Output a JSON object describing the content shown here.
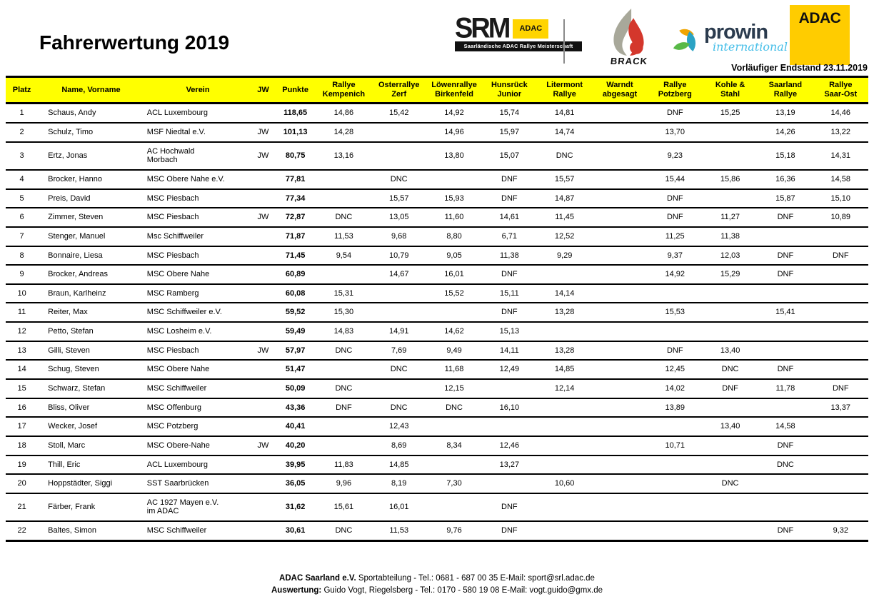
{
  "page": {
    "title": "Fahrerwertung 2019",
    "status_note": "Vorläufiger Endstand 23.11.2019"
  },
  "logos": {
    "srm": {
      "word": "SRM",
      "adac_badge": "ADAC",
      "subtitle": "Saarländische ADAC Rallye Meisterschaft"
    },
    "brack": {
      "word": "BRACK"
    },
    "prowin": {
      "word": "prowin",
      "subtitle": "international"
    },
    "adac": {
      "word": "ADAC"
    }
  },
  "colors": {
    "header_yellow": "#FFFF00",
    "adac_yellow": "#FFCC00",
    "prowin_navy": "#2B3B4E",
    "prowin_blue": "#45BEE8",
    "brack_red": "#D4372C",
    "brack_grey": "#A8A89A",
    "leaf_orange": "#F0A500",
    "leaf_teal": "#2BA3C4",
    "leaf_green": "#58B947"
  },
  "table": {
    "columns": [
      {
        "key": "platz",
        "label": "Platz"
      },
      {
        "key": "name",
        "label": "Name, Vorname"
      },
      {
        "key": "verein",
        "label": "Verein"
      },
      {
        "key": "jw",
        "label": "JW"
      },
      {
        "key": "punkte",
        "label": "Punkte"
      },
      {
        "key": "race0",
        "label": "Rallye\nKempenich"
      },
      {
        "key": "race1",
        "label": "Osterrallye\nZerf"
      },
      {
        "key": "race2",
        "label": "Löwenrallye\nBirkenfeld"
      },
      {
        "key": "race3",
        "label": "Hunsrück\nJunior"
      },
      {
        "key": "race4",
        "label": "Litermont\nRallye"
      },
      {
        "key": "race5",
        "label": "Warndt\nabgesagt"
      },
      {
        "key": "race6",
        "label": "Rallye\nPotzberg"
      },
      {
        "key": "race7",
        "label": "Kohle &\nStahl"
      },
      {
        "key": "race8",
        "label": "Saarland\nRallye"
      },
      {
        "key": "race9",
        "label": "Rallye\nSaar-Ost"
      }
    ],
    "rows": [
      {
        "platz": "1",
        "name": "Schaus,  Andy",
        "verein": "ACL Luxembourg",
        "jw": "",
        "punkte": "118,65",
        "results": [
          "14,86",
          "15,42",
          "14,92",
          "15,74",
          "14,81",
          "",
          "DNF",
          "15,25",
          "13,19",
          "14,46"
        ]
      },
      {
        "platz": "2",
        "name": "Schulz,  Timo",
        "verein": "MSF Niedtal e.V.",
        "jw": "JW",
        "punkte": "101,13",
        "results": [
          "14,28",
          "",
          "14,96",
          "15,97",
          "14,74",
          "",
          "13,70",
          "",
          "14,26",
          "13,22"
        ]
      },
      {
        "platz": "3",
        "name": "Ertz,  Jonas",
        "verein": "AC Hochwald\nMorbach",
        "jw": "JW",
        "punkte": "80,75",
        "results": [
          "13,16",
          "",
          "13,80",
          "15,07",
          "DNC",
          "",
          "9,23",
          "",
          "15,18",
          "14,31"
        ]
      },
      {
        "platz": "4",
        "name": "Brocker,  Hanno",
        "verein": "MSC Obere Nahe e.V.",
        "jw": "",
        "punkte": "77,81",
        "results": [
          "",
          "DNC",
          "",
          "DNF",
          "15,57",
          "",
          "15,44",
          "15,86",
          "16,36",
          "14,58"
        ]
      },
      {
        "platz": "5",
        "name": "Preis,  David",
        "verein": "MSC Piesbach",
        "jw": "",
        "punkte": "77,34",
        "results": [
          "",
          "15,57",
          "15,93",
          "DNF",
          "14,87",
          "",
          "DNF",
          "",
          "15,87",
          "15,10"
        ]
      },
      {
        "platz": "6",
        "name": "Zimmer,  Steven",
        "verein": "MSC Piesbach",
        "jw": "JW",
        "punkte": "72,87",
        "results": [
          "DNC",
          "13,05",
          "11,60",
          "14,61",
          "11,45",
          "",
          "DNF",
          "11,27",
          "DNF",
          "10,89"
        ]
      },
      {
        "platz": "7",
        "name": "Stenger,  Manuel",
        "verein": "Msc Schiffweiler",
        "jw": "",
        "punkte": "71,87",
        "results": [
          "11,53",
          "9,68",
          "8,80",
          "6,71",
          "12,52",
          "",
          "11,25",
          "11,38",
          "",
          ""
        ]
      },
      {
        "platz": "8",
        "name": "Bonnaire,  Liesa",
        "verein": "MSC Piesbach",
        "jw": "",
        "punkte": "71,45",
        "results": [
          "9,54",
          "10,79",
          "9,05",
          "11,38",
          "9,29",
          "",
          "9,37",
          "12,03",
          "DNF",
          "DNF"
        ]
      },
      {
        "platz": "9",
        "name": "Brocker,  Andreas",
        "verein": "MSC Obere Nahe",
        "jw": "",
        "punkte": "60,89",
        "results": [
          "",
          "14,67",
          "16,01",
          "DNF",
          "",
          "",
          "14,92",
          "15,29",
          "DNF",
          ""
        ]
      },
      {
        "platz": "10",
        "name": "Braun,  Karlheinz",
        "verein": "MSC Ramberg",
        "jw": "",
        "punkte": "60,08",
        "results": [
          "15,31",
          "",
          "15,52",
          "15,11",
          "14,14",
          "",
          "",
          "",
          "",
          ""
        ]
      },
      {
        "platz": "11",
        "name": "Reiter,  Max",
        "verein": "MSC Schiffweiler e.V.",
        "jw": "",
        "punkte": "59,52",
        "results": [
          "15,30",
          "",
          "",
          "DNF",
          "13,28",
          "",
          "15,53",
          "",
          "15,41",
          ""
        ]
      },
      {
        "platz": "12",
        "name": "Petto,  Stefan",
        "verein": "MSC Losheim e.V.",
        "jw": "",
        "punkte": "59,49",
        "results": [
          "14,83",
          "14,91",
          "14,62",
          "15,13",
          "",
          "",
          "",
          "",
          "",
          ""
        ]
      },
      {
        "platz": "13",
        "name": "Gilli,  Steven",
        "verein": "MSC Piesbach",
        "jw": "JW",
        "punkte": "57,97",
        "results": [
          "DNC",
          "7,69",
          "9,49",
          "14,11",
          "13,28",
          "",
          "DNF",
          "13,40",
          "",
          ""
        ]
      },
      {
        "platz": "14",
        "name": "Schug,  Steven",
        "verein": "MSC Obere Nahe",
        "jw": "",
        "punkte": "51,47",
        "results": [
          "",
          "DNC",
          "11,68",
          "12,49",
          "14,85",
          "",
          "12,45",
          "DNC",
          "DNF",
          ""
        ]
      },
      {
        "platz": "15",
        "name": "Schwarz,  Stefan",
        "verein": "MSC Schiffweiler",
        "jw": "",
        "punkte": "50,09",
        "results": [
          "DNC",
          "",
          "12,15",
          "",
          "12,14",
          "",
          "14,02",
          "DNF",
          "11,78",
          "DNF"
        ]
      },
      {
        "platz": "16",
        "name": "Bliss,  Oliver",
        "verein": "MSC Offenburg",
        "jw": "",
        "punkte": "43,36",
        "results": [
          "DNF",
          "DNC",
          "DNC",
          "16,10",
          "",
          "",
          "13,89",
          "",
          "",
          "13,37"
        ]
      },
      {
        "platz": "17",
        "name": "Wecker,  Josef",
        "verein": "MSC Potzberg",
        "jw": "",
        "punkte": "40,41",
        "results": [
          "",
          "12,43",
          "",
          "",
          "",
          "",
          "",
          "13,40",
          "14,58",
          ""
        ]
      },
      {
        "platz": "18",
        "name": "Stoll,  Marc",
        "verein": "MSC Obere-Nahe",
        "jw": "JW",
        "punkte": "40,20",
        "results": [
          "",
          "8,69",
          "8,34",
          "12,46",
          "",
          "",
          "10,71",
          "",
          "DNF",
          ""
        ]
      },
      {
        "platz": "19",
        "name": "Thill,  Eric",
        "verein": "ACL Luxembourg",
        "jw": "",
        "punkte": "39,95",
        "results": [
          "11,83",
          "14,85",
          "",
          "13,27",
          "",
          "",
          "",
          "",
          "DNC",
          ""
        ]
      },
      {
        "platz": "20",
        "name": "Hoppstädter,  Siggi",
        "verein": "SST Saarbrücken",
        "jw": "",
        "punkte": "36,05",
        "results": [
          "9,96",
          "8,19",
          "7,30",
          "",
          "10,60",
          "",
          "",
          "DNC",
          "",
          ""
        ]
      },
      {
        "platz": "21",
        "name": "Färber,  Frank",
        "verein": "AC 1927 Mayen e.V.\nim ADAC",
        "jw": "",
        "punkte": "31,62",
        "results": [
          "15,61",
          "16,01",
          "",
          "DNF",
          "",
          "",
          "",
          "",
          "",
          ""
        ]
      },
      {
        "platz": "22",
        "name": "Baltes,  Simon",
        "verein": "MSC Schiffweiler",
        "jw": "",
        "punkte": "30,61",
        "results": [
          "DNC",
          "11,53",
          "9,76",
          "DNF",
          "",
          "",
          "",
          "",
          "DNF",
          "9,32"
        ]
      }
    ]
  },
  "footer": {
    "line1_bold": "ADAC Saarland e.V.",
    "line1_rest": " Sportabteilung - Tel.: 0681 - 687 00 35   E-Mail: sport@srl.adac.de",
    "line2_bold": "Auswertung:",
    "line2_rest": " Guido Vogt, Riegelsberg - Tel.: 0170 - 580 19 08  E-Mail: vogt.guido@gmx.de"
  }
}
